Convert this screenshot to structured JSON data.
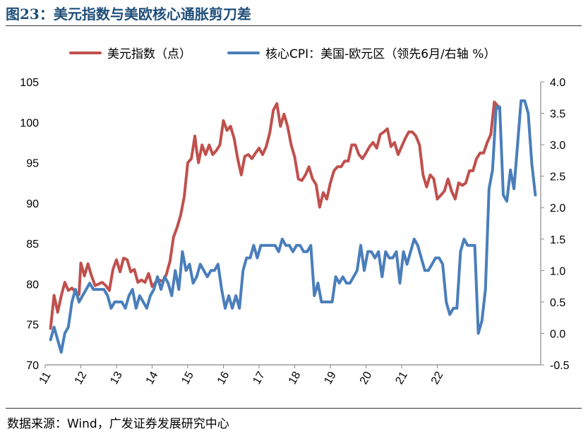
{
  "title": "图23：美元指数与美欧核心通胀剪刀差",
  "source": "数据来源：Wind，广发证券发展研究中心",
  "chart_data": {
    "type": "line",
    "series": [
      {
        "name": "美元指数（点）",
        "axis": "left",
        "color": "#c0504d",
        "points": [
          [
            11.15,
            74.5
          ],
          [
            11.25,
            78.6
          ],
          [
            11.35,
            76.5
          ],
          [
            11.45,
            78.5
          ],
          [
            11.55,
            80.2
          ],
          [
            11.65,
            79.2
          ],
          [
            11.75,
            79.5
          ],
          [
            11.85,
            79.0
          ],
          [
            11.95,
            78.7
          ],
          [
            12.0,
            82.6
          ],
          [
            12.1,
            81.0
          ],
          [
            12.2,
            82.5
          ],
          [
            12.3,
            81.0
          ],
          [
            12.4,
            79.8
          ],
          [
            12.5,
            80.0
          ],
          [
            12.6,
            80.2
          ],
          [
            12.7,
            79.8
          ],
          [
            12.8,
            79.2
          ],
          [
            12.9,
            81.8
          ],
          [
            13.0,
            83.0
          ],
          [
            13.1,
            81.5
          ],
          [
            13.2,
            83.2
          ],
          [
            13.3,
            83.0
          ],
          [
            13.4,
            81.5
          ],
          [
            13.5,
            81.8
          ],
          [
            13.6,
            80.2
          ],
          [
            13.7,
            80.5
          ],
          [
            13.8,
            80.2
          ],
          [
            13.9,
            81.3
          ],
          [
            14.0,
            79.7
          ],
          [
            14.1,
            80.2
          ],
          [
            14.2,
            80.5
          ],
          [
            14.3,
            80.3
          ],
          [
            14.4,
            81.2
          ],
          [
            14.5,
            82.8
          ],
          [
            14.6,
            85.8
          ],
          [
            14.7,
            87.0
          ],
          [
            14.8,
            88.5
          ],
          [
            14.9,
            90.8
          ],
          [
            15.0,
            95.0
          ],
          [
            15.1,
            95.5
          ],
          [
            15.2,
            98.3
          ],
          [
            15.25,
            96.5
          ],
          [
            15.3,
            95.0
          ],
          [
            15.4,
            97.2
          ],
          [
            15.5,
            96.0
          ],
          [
            15.6,
            97.2
          ],
          [
            15.7,
            96.0
          ],
          [
            15.8,
            96.5
          ],
          [
            15.9,
            97.2
          ],
          [
            16.0,
            100.2
          ],
          [
            16.1,
            99.0
          ],
          [
            16.2,
            99.5
          ],
          [
            16.3,
            98.0
          ],
          [
            16.4,
            95.5
          ],
          [
            16.5,
            93.5
          ],
          [
            16.6,
            95.8
          ],
          [
            16.7,
            96.0
          ],
          [
            16.8,
            95.5
          ],
          [
            16.9,
            96.2
          ],
          [
            17.0,
            96.8
          ],
          [
            17.1,
            96.0
          ],
          [
            17.2,
            97.0
          ],
          [
            17.3,
            98.7
          ],
          [
            17.4,
            101.5
          ],
          [
            17.5,
            102.3
          ],
          [
            17.6,
            99.5
          ],
          [
            17.7,
            101.0
          ],
          [
            17.8,
            99.5
          ],
          [
            17.9,
            97.2
          ],
          [
            18.0,
            95.7
          ],
          [
            18.1,
            93.0
          ],
          [
            18.2,
            92.8
          ],
          [
            18.3,
            93.5
          ],
          [
            18.4,
            94.5
          ],
          [
            18.5,
            93.0
          ],
          [
            18.6,
            92.3
          ],
          [
            18.7,
            89.5
          ],
          [
            18.8,
            91.3
          ],
          [
            18.9,
            90.5
          ],
          [
            19.0,
            92.5
          ],
          [
            19.1,
            94.0
          ],
          [
            19.2,
            94.5
          ],
          [
            19.3,
            94.5
          ],
          [
            19.4,
            95.2
          ],
          [
            19.5,
            95.2
          ],
          [
            19.6,
            97.2
          ],
          [
            19.7,
            97.2
          ],
          [
            19.8,
            96.0
          ],
          [
            19.9,
            95.5
          ],
          [
            20.0,
            96.2
          ],
          [
            20.1,
            97.0
          ],
          [
            20.2,
            97.5
          ],
          [
            20.3,
            96.8
          ],
          [
            20.4,
            98.5
          ],
          [
            20.5,
            98.8
          ],
          [
            20.6,
            99.2
          ],
          [
            20.7,
            97.0
          ],
          [
            20.8,
            97.5
          ],
          [
            20.9,
            96.0
          ],
          [
            21.0,
            97.0
          ],
          [
            21.1,
            98.0
          ],
          [
            21.2,
            98.8
          ],
          [
            21.3,
            98.8
          ],
          [
            21.4,
            98.3
          ],
          [
            21.5,
            97.2
          ],
          [
            21.6,
            93.5
          ],
          [
            21.7,
            92.0
          ],
          [
            21.8,
            93.5
          ],
          [
            21.9,
            93.0
          ],
          [
            22.0,
            90.5
          ],
          [
            22.1,
            91.0
          ],
          [
            22.2,
            91.5
          ],
          [
            22.3,
            93.0
          ],
          [
            22.4,
            91.5
          ],
          [
            22.5,
            90.5
          ],
          [
            22.6,
            92.5
          ],
          [
            22.7,
            92.2
          ],
          [
            22.8,
            92.5
          ],
          [
            22.9,
            94.0
          ],
          [
            23.0,
            94.0
          ],
          [
            23.1,
            95.5
          ],
          [
            23.2,
            96.2
          ],
          [
            23.3,
            96.2
          ],
          [
            23.4,
            97.5
          ],
          [
            23.5,
            98.5
          ],
          [
            23.6,
            102.5
          ],
          [
            23.7,
            102.0
          ],
          [
            23.75,
            101.5
          ]
        ]
      },
      {
        "name": "核心CPI：美国-欧元区（领先6月/右轴 %）",
        "axis": "right",
        "color": "#4a7ebb",
        "points": [
          [
            11.15,
            -0.1
          ],
          [
            11.25,
            0.1
          ],
          [
            11.35,
            -0.1
          ],
          [
            11.45,
            -0.3
          ],
          [
            11.55,
            0.0
          ],
          [
            11.65,
            0.1
          ],
          [
            11.75,
            0.5
          ],
          [
            11.85,
            0.7
          ],
          [
            11.95,
            0.5
          ],
          [
            12.05,
            0.6
          ],
          [
            12.15,
            0.7
          ],
          [
            12.25,
            0.8
          ],
          [
            12.35,
            0.7
          ],
          [
            12.45,
            0.7
          ],
          [
            12.55,
            0.7
          ],
          [
            12.65,
            0.7
          ],
          [
            12.75,
            0.6
          ],
          [
            12.85,
            0.4
          ],
          [
            12.95,
            0.5
          ],
          [
            13.05,
            0.5
          ],
          [
            13.15,
            0.5
          ],
          [
            13.25,
            0.4
          ],
          [
            13.35,
            0.6
          ],
          [
            13.45,
            0.7
          ],
          [
            13.55,
            0.4
          ],
          [
            13.65,
            0.6
          ],
          [
            13.75,
            0.5
          ],
          [
            13.85,
            0.4
          ],
          [
            13.95,
            0.6
          ],
          [
            14.05,
            0.7
          ],
          [
            14.15,
            0.9
          ],
          [
            14.25,
            0.7
          ],
          [
            14.35,
            0.9
          ],
          [
            14.45,
            0.8
          ],
          [
            14.55,
            0.6
          ],
          [
            14.65,
            1.0
          ],
          [
            14.75,
            0.7
          ],
          [
            14.85,
            1.3
          ],
          [
            14.95,
            1.0
          ],
          [
            15.05,
            1.1
          ],
          [
            15.15,
            0.8
          ],
          [
            15.25,
            0.9
          ],
          [
            15.35,
            1.1
          ],
          [
            15.45,
            1.0
          ],
          [
            15.55,
            0.9
          ],
          [
            15.65,
            1.0
          ],
          [
            15.75,
            1.0
          ],
          [
            15.85,
            1.1
          ],
          [
            15.95,
            0.7
          ],
          [
            16.05,
            0.4
          ],
          [
            16.15,
            0.6
          ],
          [
            16.25,
            0.4
          ],
          [
            16.35,
            0.6
          ],
          [
            16.45,
            0.4
          ],
          [
            16.55,
            1.0
          ],
          [
            16.65,
            1.2
          ],
          [
            16.75,
            1.2
          ],
          [
            16.85,
            1.4
          ],
          [
            16.95,
            1.2
          ],
          [
            17.05,
            1.4
          ],
          [
            17.15,
            1.4
          ],
          [
            17.25,
            1.4
          ],
          [
            17.35,
            1.4
          ],
          [
            17.45,
            1.4
          ],
          [
            17.55,
            1.3
          ],
          [
            17.65,
            1.5
          ],
          [
            17.75,
            1.4
          ],
          [
            17.85,
            1.4
          ],
          [
            17.95,
            1.3
          ],
          [
            18.05,
            1.4
          ],
          [
            18.15,
            1.4
          ],
          [
            18.25,
            1.3
          ],
          [
            18.35,
            1.3
          ],
          [
            18.45,
            1.4
          ],
          [
            18.55,
            0.6
          ],
          [
            18.65,
            0.8
          ],
          [
            18.75,
            0.5
          ],
          [
            18.85,
            0.5
          ],
          [
            18.95,
            0.5
          ],
          [
            19.05,
            0.5
          ],
          [
            19.15,
            0.9
          ],
          [
            19.25,
            0.8
          ],
          [
            19.35,
            0.9
          ],
          [
            19.45,
            0.8
          ],
          [
            19.55,
            0.8
          ],
          [
            19.65,
            0.9
          ],
          [
            19.75,
            1.0
          ],
          [
            19.85,
            1.4
          ],
          [
            19.95,
            1.0
          ],
          [
            20.05,
            1.3
          ],
          [
            20.15,
            1.3
          ],
          [
            20.25,
            1.2
          ],
          [
            20.35,
            1.3
          ],
          [
            20.45,
            0.9
          ],
          [
            20.55,
            1.3
          ],
          [
            20.65,
            1.2
          ],
          [
            20.75,
            1.2
          ],
          [
            20.85,
            1.3
          ],
          [
            20.95,
            0.8
          ],
          [
            21.05,
            1.3
          ],
          [
            21.15,
            1.1
          ],
          [
            21.25,
            1.3
          ],
          [
            21.35,
            1.5
          ],
          [
            21.45,
            1.4
          ],
          [
            21.55,
            1.2
          ],
          [
            21.65,
            1.0
          ],
          [
            21.75,
            1.0
          ],
          [
            21.85,
            1.1
          ],
          [
            21.95,
            1.2
          ],
          [
            22.05,
            1.2
          ],
          [
            22.15,
            1.1
          ],
          [
            22.25,
            0.5
          ],
          [
            22.35,
            0.3
          ],
          [
            22.45,
            0.4
          ],
          [
            22.55,
            0.4
          ],
          [
            22.65,
            1.3
          ],
          [
            22.75,
            1.5
          ],
          [
            22.85,
            1.4
          ],
          [
            22.95,
            1.4
          ],
          [
            23.05,
            1.4
          ],
          [
            23.15,
            0.0
          ],
          [
            23.25,
            0.2
          ],
          [
            23.35,
            0.7
          ],
          [
            23.45,
            2.3
          ],
          [
            23.55,
            2.6
          ],
          [
            23.65,
            3.6
          ],
          [
            23.75,
            3.6
          ],
          [
            23.85,
            2.2
          ],
          [
            23.95,
            2.1
          ],
          [
            24.05,
            2.6
          ],
          [
            24.15,
            2.3
          ],
          [
            24.25,
            3.0
          ],
          [
            24.35,
            3.7
          ],
          [
            24.45,
            3.7
          ],
          [
            24.55,
            3.5
          ],
          [
            24.65,
            2.7
          ],
          [
            24.75,
            2.2
          ]
        ]
      }
    ],
    "x_ticks": [
      "11",
      "12",
      "13",
      "14",
      "15",
      "16",
      "17",
      "18",
      "19",
      "20",
      "21",
      "22"
    ],
    "y_left": {
      "min": 70,
      "max": 105,
      "ticks": [
        "70",
        "75",
        "80",
        "85",
        "90",
        "95",
        "100",
        "105"
      ]
    },
    "y_right": {
      "min": -0.5,
      "max": 4.0,
      "ticks": [
        "-0.5",
        "0.0",
        "0.5",
        "1.0",
        "1.5",
        "2.0",
        "2.5",
        "3.0",
        "3.5",
        "4.0"
      ]
    },
    "grid": false,
    "legend_placement": "top"
  }
}
